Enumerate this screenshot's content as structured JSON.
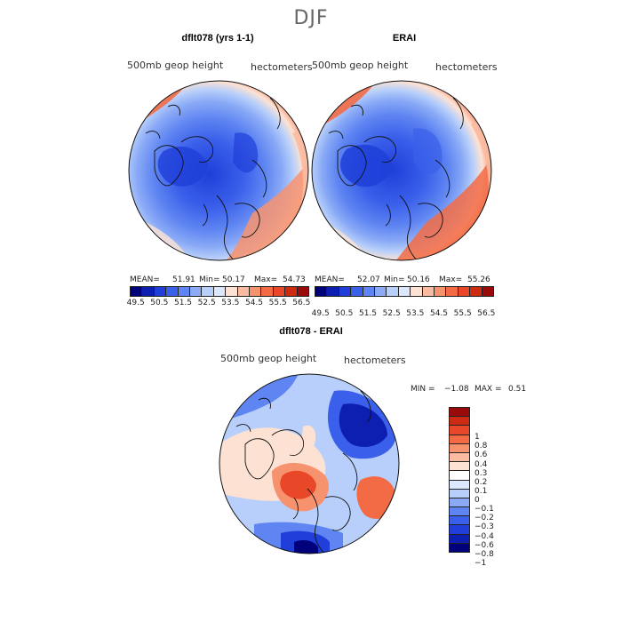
{
  "title": "DJF",
  "panels": {
    "model": {
      "title": "dflt078 (yrs 1-1)",
      "left_label": "500mb  geop  height",
      "right_label": "hectometers",
      "mean_label": "MEAN=",
      "mean": "51.91",
      "min_label": "Min=",
      "min": "50.17",
      "max_label": "Max=",
      "max": "54.73"
    },
    "obs": {
      "title": "ERAI",
      "left_label": "500mb  geop  height",
      "right_label": "hectometers",
      "mean_label": "MEAN=",
      "mean": "52.07",
      "min_label": "Min=",
      "min": "50.16",
      "max_label": "Max=",
      "max": "55.26"
    },
    "diff": {
      "title": "dflt078 - ERAI",
      "left_label": "500mb  geop  height",
      "right_label": "hectometers",
      "min_label": "MIN =",
      "min": "−1.08",
      "max_label": "MAX =",
      "max": "0.51"
    }
  },
  "colorbars": {
    "height": {
      "ticks": [
        "49.5",
        "50.5",
        "51.5",
        "52.5",
        "53.5",
        "54.5",
        "55.5",
        "56.5"
      ],
      "colors": [
        "#00007a",
        "#0c1fb0",
        "#1f3fd8",
        "#3a5fea",
        "#5f85f2",
        "#8aaaf6",
        "#b7cffa",
        "#dce8fd",
        "#fde2d4",
        "#fbbba0",
        "#f7926f",
        "#f26b45",
        "#e84827",
        "#cc2a12",
        "#9a0a0a"
      ]
    },
    "diff": {
      "ticks": [
        "1",
        "0.8",
        "0.6",
        "0.4",
        "0.3",
        "0.2",
        "0.1",
        "0",
        "−0.1",
        "−0.2",
        "−0.3",
        "−0.4",
        "−0.6",
        "−0.8",
        "−1"
      ],
      "colors": [
        "#9a0a0a",
        "#cc2a12",
        "#e84827",
        "#f26b45",
        "#f7926f",
        "#fbbba0",
        "#fde2d4",
        "#ffffff",
        "#dce8fd",
        "#b7cffa",
        "#8aaaf6",
        "#5f85f2",
        "#3a5fea",
        "#1f3fd8",
        "#0c1fb0",
        "#00007a"
      ]
    }
  }
}
